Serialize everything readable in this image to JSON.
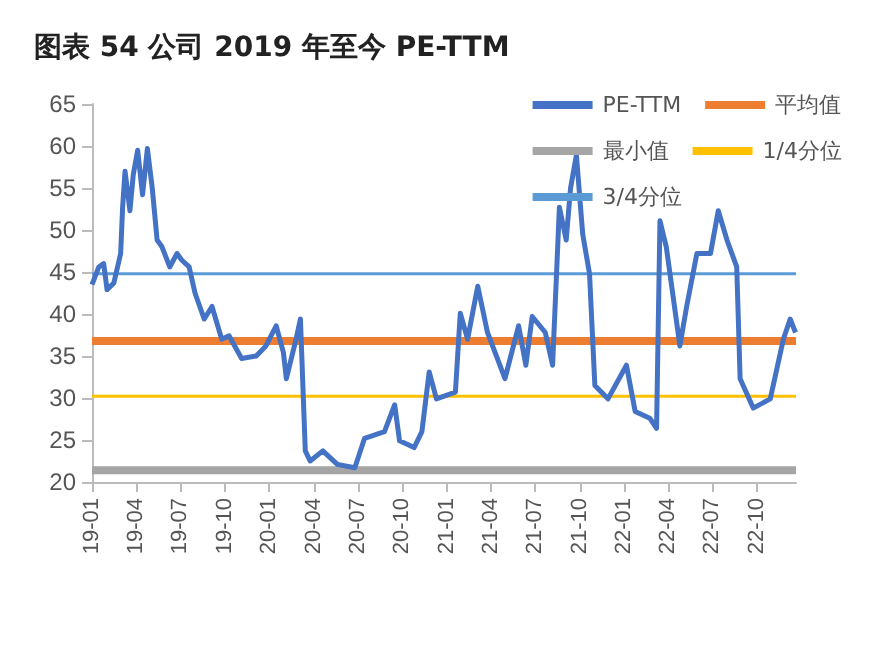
{
  "chart_data": {
    "type": "line",
    "title": "图表 54 公司 2019 年至今 PE-TTM",
    "xlim": [
      "2019-01-01",
      "2022-12-20"
    ],
    "xticks": [
      {
        "value": "2019-01-01",
        "label": "19-01"
      },
      {
        "value": "2019-04-01",
        "label": "19-04"
      },
      {
        "value": "2019-07-01",
        "label": "19-07"
      },
      {
        "value": "2019-10-01",
        "label": "19-10"
      },
      {
        "value": "2020-01-01",
        "label": "20-01"
      },
      {
        "value": "2020-04-01",
        "label": "20-04"
      },
      {
        "value": "2020-07-01",
        "label": "20-07"
      },
      {
        "value": "2020-10-01",
        "label": "20-10"
      },
      {
        "value": "2021-01-01",
        "label": "21-01"
      },
      {
        "value": "2021-04-01",
        "label": "21-04"
      },
      {
        "value": "2021-07-01",
        "label": "21-07"
      },
      {
        "value": "2021-10-01",
        "label": "21-10"
      },
      {
        "value": "2022-01-01",
        "label": "22-01"
      },
      {
        "value": "2022-04-01",
        "label": "22-04"
      },
      {
        "value": "2022-07-01",
        "label": "22-07"
      },
      {
        "value": "2022-10-01",
        "label": "22-10"
      }
    ],
    "ylim": [
      20,
      65
    ],
    "yticks": [
      20,
      25,
      30,
      35,
      40,
      45,
      50,
      55,
      60,
      65
    ],
    "grid": false,
    "legend": "top right",
    "line_style": "solid",
    "marker": "none",
    "series": [
      {
        "name": "PE-TTM",
        "color": "#4472c4",
        "x": [
          "2019-01-01",
          "2019-01-15",
          "2019-01-25",
          "2019-02-01",
          "2019-02-15",
          "2019-03-01",
          "2019-03-05",
          "2019-03-10",
          "2019-03-20",
          "2019-03-27",
          "2019-04-05",
          "2019-04-15",
          "2019-04-25",
          "2019-05-05",
          "2019-05-15",
          "2019-05-25",
          "2019-06-10",
          "2019-06-25",
          "2019-07-05",
          "2019-07-20",
          "2019-08-01",
          "2019-08-20",
          "2019-09-05",
          "2019-09-25",
          "2019-10-10",
          "2019-11-05",
          "2019-12-05",
          "2019-12-25",
          "2020-01-15",
          "2020-01-30",
          "2020-02-05",
          "2020-02-25",
          "2020-03-05",
          "2020-03-15",
          "2020-03-25",
          "2020-04-20",
          "2020-05-20",
          "2020-06-25",
          "2020-07-15",
          "2020-08-25",
          "2020-09-15",
          "2020-09-25",
          "2020-10-25",
          "2020-11-10",
          "2020-11-25",
          "2020-12-10",
          "2021-01-18",
          "2021-01-28",
          "2021-02-12",
          "2021-03-05",
          "2021-03-25",
          "2021-04-30",
          "2021-05-28",
          "2021-06-12",
          "2021-06-25",
          "2021-07-22",
          "2021-08-06",
          "2021-08-20",
          "2021-09-03",
          "2021-09-12",
          "2021-09-24",
          "2021-10-07",
          "2021-10-21",
          "2021-11-01",
          "2021-11-28",
          "2022-01-05",
          "2022-01-23",
          "2022-02-22",
          "2022-03-08",
          "2022-03-15",
          "2022-03-28",
          "2022-04-25",
          "2022-05-09",
          "2022-05-30",
          "2022-06-27",
          "2022-07-13",
          "2022-07-31",
          "2022-08-20",
          "2022-08-27",
          "2022-09-23",
          "2022-10-28",
          "2022-11-24",
          "2022-12-08",
          "2022-12-19"
        ],
        "values": [
          43.5,
          45.6,
          46,
          42.9,
          43.7,
          47.2,
          52.7,
          57,
          52.3,
          56.6,
          59.5,
          54.2,
          59.7,
          55,
          48.8,
          48,
          45.6,
          47.2,
          46.4,
          45.6,
          42.5,
          39.4,
          40.9,
          37,
          37.4,
          34.7,
          35,
          36.2,
          38.6,
          35.4,
          32.3,
          37,
          39.4,
          23.7,
          22.5,
          23.7,
          22.1,
          21.7,
          25.2,
          26,
          29.2,
          24.9,
          24.1,
          26,
          33.1,
          29.9,
          30.7,
          40.1,
          37,
          43.3,
          37.8,
          32.3,
          38.6,
          33.9,
          39.7,
          37.8,
          33.9,
          52.7,
          48.8,
          55,
          58.9,
          49.5,
          44.8,
          31.5,
          29.9,
          33.9,
          28.4,
          27.6,
          26.4,
          51.1,
          48,
          36.2,
          40.9,
          47.2,
          47.2,
          52.3,
          48.8,
          45.6,
          32.3,
          28.8,
          29.9,
          37,
          39.4,
          37.8
        ]
      }
    ],
    "ref_lines": [
      {
        "axis": "y",
        "value": 36.8,
        "label": "平均值",
        "color": "#ed7d31"
      },
      {
        "axis": "y",
        "value": 21.4,
        "label": "最小值",
        "color": "#a5a5a5"
      },
      {
        "axis": "y",
        "value": 30.2,
        "label": "1/4分位",
        "color": "#ffc000"
      },
      {
        "axis": "y",
        "value": 44.8,
        "label": "3/4分位",
        "color": "#5b9bd5"
      }
    ]
  }
}
